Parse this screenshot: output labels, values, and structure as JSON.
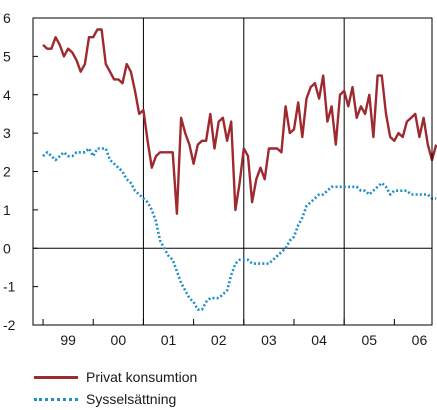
{
  "chart_data": {
    "type": "line",
    "x_start": 1999.0,
    "x_step": 0.08333,
    "xlim": [
      1998.8,
      2006.75
    ],
    "ylim": [
      -2,
      6
    ],
    "y_ticks": [
      "-2",
      "-1",
      "0",
      "1",
      "2",
      "3",
      "4",
      "5",
      "6"
    ],
    "x_ticks": [
      {
        "label": "99",
        "x": 1999.5
      },
      {
        "label": "00",
        "x": 2000.5
      },
      {
        "label": "01",
        "x": 2001.5
      },
      {
        "label": "02",
        "x": 2002.5
      },
      {
        "label": "03",
        "x": 2003.5
      },
      {
        "label": "04",
        "x": 2004.5
      },
      {
        "label": "05",
        "x": 2005.5
      },
      {
        "label": "06",
        "x": 2006.5
      }
    ],
    "vertical_gridlines": [
      2001.0,
      2003.0,
      2005.0
    ],
    "horizontal_gridlines": [
      0
    ],
    "series": [
      {
        "name": "Privat konsumtion",
        "color": "#9e2a2f",
        "style": "solid",
        "values": [
          5.3,
          5.2,
          5.2,
          5.5,
          5.3,
          5.0,
          5.2,
          5.1,
          4.9,
          4.6,
          4.8,
          5.5,
          5.5,
          5.7,
          5.7,
          4.8,
          4.6,
          4.4,
          4.4,
          4.3,
          4.8,
          4.6,
          4.1,
          3.5,
          3.6,
          2.8,
          2.1,
          2.4,
          2.5,
          2.5,
          2.5,
          2.5,
          0.9,
          3.4,
          3.0,
          2.7,
          2.2,
          2.7,
          2.8,
          2.8,
          3.5,
          2.6,
          3.3,
          3.4,
          2.8,
          3.3,
          1.0,
          1.7,
          2.6,
          2.4,
          1.2,
          1.8,
          2.1,
          1.8,
          2.6,
          2.6,
          2.6,
          2.5,
          3.7,
          3.0,
          3.1,
          3.8,
          2.9,
          3.9,
          4.2,
          4.3,
          3.9,
          4.5,
          3.3,
          3.7,
          2.7,
          4.0,
          4.1,
          3.7,
          4.2,
          3.4,
          3.7,
          3.5,
          4.0,
          2.9,
          4.5,
          4.5,
          3.5,
          2.9,
          2.8,
          3.0,
          2.9,
          3.3,
          3.4,
          3.5,
          2.9,
          3.4,
          2.7,
          2.3,
          2.7
        ]
      },
      {
        "name": "Sysselsättning",
        "color": "#1e8fc8",
        "style": "dotted",
        "values": [
          2.4,
          2.5,
          2.4,
          2.3,
          2.4,
          2.5,
          2.4,
          2.4,
          2.5,
          2.5,
          2.5,
          2.6,
          2.4,
          2.6,
          2.6,
          2.6,
          2.3,
          2.2,
          2.1,
          2.0,
          1.8,
          1.7,
          1.5,
          1.4,
          1.3,
          1.2,
          1.0,
          0.7,
          0.2,
          0.0,
          -0.2,
          -0.3,
          -0.6,
          -0.9,
          -1.1,
          -1.3,
          -1.4,
          -1.6,
          -1.6,
          -1.4,
          -1.3,
          -1.3,
          -1.3,
          -1.2,
          -1.1,
          -0.7,
          -0.4,
          -0.3,
          -0.3,
          -0.3,
          -0.4,
          -0.4,
          -0.4,
          -0.4,
          -0.4,
          -0.3,
          -0.2,
          -0.1,
          0.0,
          0.2,
          0.3,
          0.6,
          0.8,
          1.1,
          1.2,
          1.3,
          1.4,
          1.4,
          1.5,
          1.6,
          1.6,
          1.6,
          1.6,
          1.6,
          1.6,
          1.6,
          1.5,
          1.5,
          1.4,
          1.5,
          1.6,
          1.7,
          1.6,
          1.4,
          1.5,
          1.5,
          1.5,
          1.5,
          1.4,
          1.4,
          1.4,
          1.4,
          1.4,
          1.3,
          1.3
        ]
      }
    ]
  },
  "legend": {
    "items": [
      {
        "label": "Privat konsumtion"
      },
      {
        "label": "Sysselsättning"
      }
    ]
  }
}
